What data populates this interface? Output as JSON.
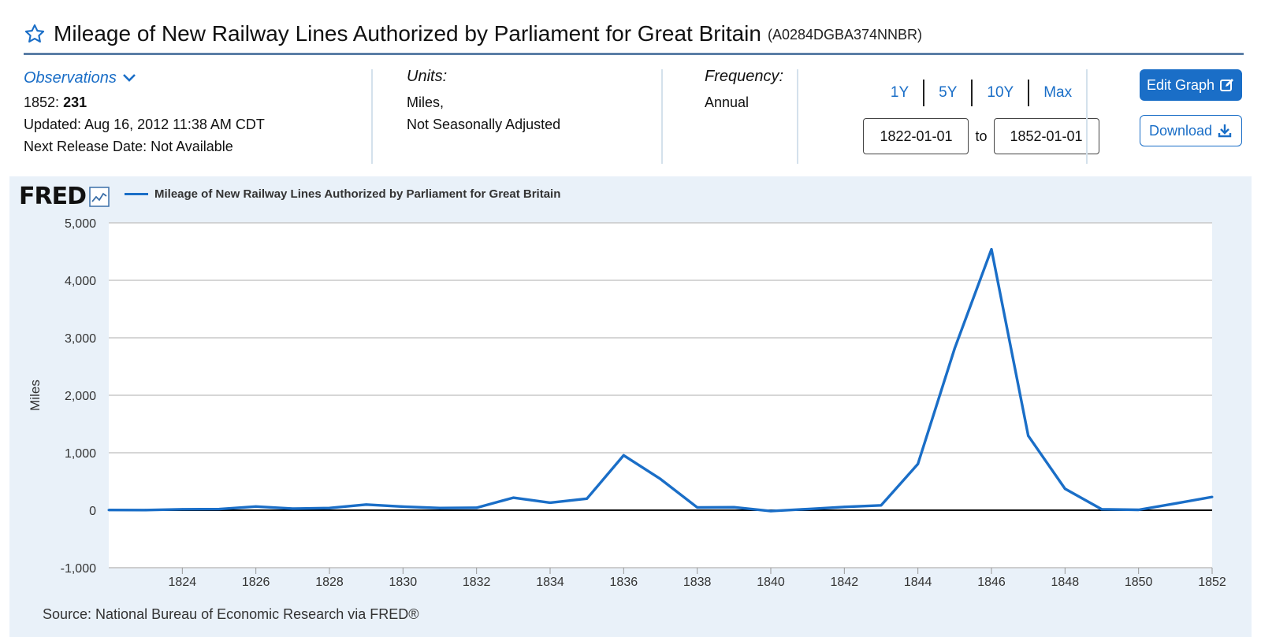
{
  "header": {
    "title": "Mileage of New Railway Lines Authorized by Parliament for Great Britain",
    "series_id": "(A0284DGBA374NNBR)"
  },
  "observations": {
    "label": "Observations",
    "latest_period": "1852:",
    "latest_value": "231",
    "updated": "Updated: Aug 16, 2012 11:38 AM CDT",
    "next_release": "Next Release Date: Not Available"
  },
  "units": {
    "label": "Units:",
    "line1": "Miles,",
    "line2": "Not Seasonally Adjusted"
  },
  "frequency": {
    "label": "Frequency:",
    "value": "Annual"
  },
  "range": {
    "buttons": [
      "1Y",
      "5Y",
      "10Y",
      "Max"
    ],
    "start": "1822-01-01",
    "to": "to",
    "end": "1852-01-01"
  },
  "actions": {
    "edit": "Edit Graph",
    "download": "Download"
  },
  "chart": {
    "logo": "FRED",
    "source": "Source: National Bureau of Economic Research via FRED®"
  },
  "colors": {
    "accent": "#1a6ec7",
    "panel": "#e9f1f9"
  },
  "chart_data": {
    "type": "line",
    "title": "",
    "xlabel": "",
    "ylabel": "Miles",
    "x": [
      1822,
      1823,
      1824,
      1825,
      1826,
      1827,
      1828,
      1829,
      1830,
      1831,
      1832,
      1833,
      1834,
      1835,
      1836,
      1837,
      1838,
      1839,
      1840,
      1841,
      1842,
      1843,
      1844,
      1845,
      1846,
      1847,
      1848,
      1849,
      1850,
      1851,
      1852
    ],
    "series": [
      {
        "name": "Mileage of New Railway Lines Authorized by Parliament for Great Britain",
        "values": [
          4,
          3,
          16,
          20,
          64,
          28,
          38,
          98,
          63,
          38,
          43,
          218,
          131,
          201,
          955,
          543,
          49,
          52,
          -15,
          20,
          58,
          85,
          805,
          2816,
          4540,
          1295,
          373,
          16,
          7,
          117,
          231
        ]
      }
    ],
    "xlim": [
      1822,
      1852
    ],
    "ylim": [
      -1000,
      5000
    ],
    "x_ticks": [
      "1824",
      "1826",
      "1828",
      "1830",
      "1832",
      "1834",
      "1836",
      "1838",
      "1840",
      "1842",
      "1844",
      "1846",
      "1848",
      "1850",
      "1852"
    ],
    "y_ticks": [
      "5,000",
      "4,000",
      "3,000",
      "2,000",
      "1,000",
      "0",
      "-1,000"
    ],
    "grid": true,
    "legend": "top-left"
  }
}
